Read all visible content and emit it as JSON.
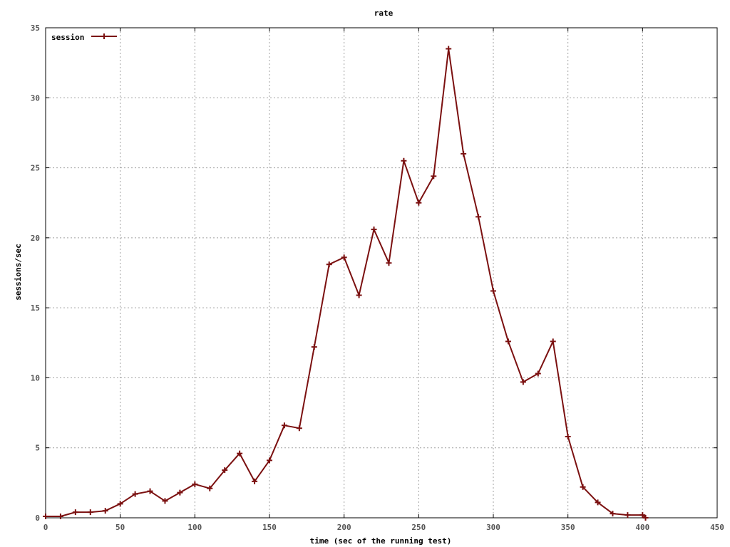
{
  "chart_data": {
    "type": "line",
    "title": "rate",
    "xlabel": "time (sec of the running test)",
    "ylabel": "sessions/sec",
    "xlim": [
      0,
      450
    ],
    "ylim": [
      0,
      35
    ],
    "xticks": [
      "0",
      "50",
      "100",
      "150",
      "200",
      "250",
      "300",
      "350",
      "400",
      "450"
    ],
    "yticks": [
      "0",
      "5",
      "10",
      "15",
      "20",
      "25",
      "30",
      "35"
    ],
    "grid": true,
    "legend_position": "top-left",
    "series": [
      {
        "name": "session",
        "color": "#7b1010",
        "marker": "plus",
        "x": [
          0,
          10,
          20,
          30,
          40,
          50,
          60,
          70,
          80,
          90,
          100,
          110,
          120,
          130,
          140,
          150,
          160,
          170,
          180,
          190,
          200,
          210,
          220,
          230,
          240,
          250,
          260,
          270,
          280,
          290,
          300,
          310,
          320,
          330,
          340,
          350,
          360,
          370,
          380,
          390,
          400,
          402
        ],
        "y": [
          0.1,
          0.1,
          0.4,
          0.4,
          0.5,
          1.0,
          1.7,
          1.9,
          1.2,
          1.8,
          2.4,
          2.1,
          3.4,
          4.6,
          2.6,
          4.1,
          6.6,
          6.4,
          12.2,
          18.1,
          18.6,
          15.9,
          20.6,
          18.2,
          25.5,
          22.5,
          24.4,
          33.5,
          26.0,
          21.5,
          16.2,
          12.6,
          9.7,
          10.3,
          12.6,
          5.8,
          2.2,
          1.1,
          0.3,
          0.2,
          0.2,
          0.0
        ]
      }
    ]
  }
}
